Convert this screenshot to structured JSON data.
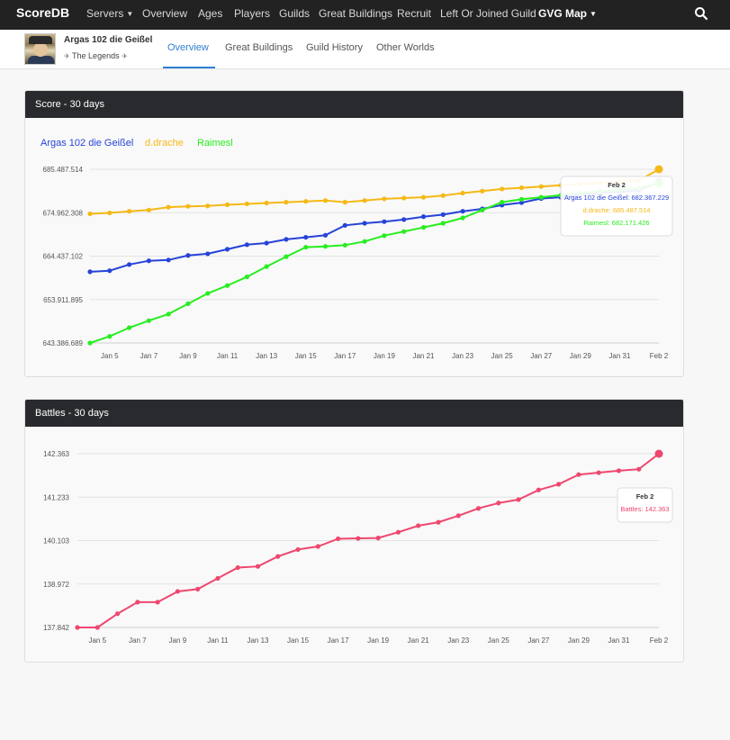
{
  "nav": {
    "brand": "ScoreDB",
    "items": [
      "Servers",
      "Overview",
      "Ages",
      "Players",
      "Guilds",
      "Great Buildings",
      "Recruit",
      "Left Or Joined Guild",
      "GVG Map"
    ]
  },
  "profile": {
    "name": "Argas 102 die Geißel",
    "guild": "The Legends",
    "guild_icon": "wing-icon",
    "tabs": [
      "Overview",
      "Great Buildings",
      "Guild History",
      "Other Worlds"
    ],
    "active_tab": "Overview"
  },
  "colors": {
    "argas": "#2643d8",
    "drache": "#f5b816",
    "raimesl": "#27ee1e",
    "battles": "#ef476f",
    "header": "#292a2e",
    "accent": "#2f7fd3"
  },
  "score_panel": {
    "title": "Score - 30 days"
  },
  "battles_panel": {
    "title": "Battles - 30 days"
  },
  "chart_data": [
    {
      "type": "line",
      "title": "Score - 30 days",
      "legend_placement": "top-left",
      "grid": true,
      "x_labels": [
        "Jan 5",
        "Jan 7",
        "Jan 9",
        "Jan 11",
        "Jan 13",
        "Jan 15",
        "Jan 17",
        "Jan 19",
        "Jan 21",
        "Jan 23",
        "Jan 25",
        "Jan 27",
        "Jan 29",
        "Jan 31",
        "Feb 2"
      ],
      "y_ticks": [
        "685.487.514",
        "674.962.308",
        "664.437.102",
        "653.911.895",
        "643.386.689"
      ],
      "ylim": [
        643386689,
        685487514
      ],
      "x": [
        "Jan 4",
        "Jan 5",
        "Jan 6",
        "Jan 7",
        "Jan 8",
        "Jan 9",
        "Jan 10",
        "Jan 11",
        "Jan 12",
        "Jan 13",
        "Jan 14",
        "Jan 15",
        "Jan 16",
        "Jan 17",
        "Jan 18",
        "Jan 19",
        "Jan 20",
        "Jan 21",
        "Jan 22",
        "Jan 23",
        "Jan 24",
        "Jan 25",
        "Jan 26",
        "Jan 27",
        "Jan 28",
        "Jan 29",
        "Jan 30",
        "Jan 31",
        "Feb 1",
        "Feb 2"
      ],
      "series": [
        {
          "name": "Argas 102 die Geißel",
          "color": "#2643d8",
          "values": [
            660650000,
            660900000,
            662400000,
            663300000,
            663500000,
            664600000,
            665000000,
            666100000,
            667200000,
            667600000,
            668500000,
            669000000,
            669500000,
            671900000,
            672400000,
            672800000,
            673300000,
            674000000,
            674500000,
            675300000,
            675900000,
            676800000,
            677400000,
            678400000,
            678700000,
            679300000,
            679700000,
            680000000,
            680400000,
            682367229
          ]
        },
        {
          "name": "d.drache",
          "color": "#f5b816",
          "values": [
            674700000,
            674900000,
            675300000,
            675600000,
            676300000,
            676500000,
            676600000,
            676900000,
            677100000,
            677300000,
            677500000,
            677700000,
            677900000,
            677500000,
            677900000,
            678300000,
            678500000,
            678700000,
            679100000,
            679700000,
            680200000,
            680700000,
            681000000,
            681300000,
            681600000,
            681900000,
            682200000,
            682500000,
            682800000,
            685487514
          ]
        },
        {
          "name": "Raimesl",
          "color": "#27ee1e",
          "values": [
            643386689,
            645000000,
            647100000,
            648800000,
            650400000,
            652900000,
            655400000,
            657300000,
            659400000,
            661900000,
            664300000,
            666600000,
            666800000,
            667100000,
            668000000,
            669400000,
            670400000,
            671400000,
            672400000,
            673700000,
            675600000,
            677500000,
            678200000,
            678700000,
            679200000,
            679700000,
            680100000,
            680500000,
            680900000,
            682171426
          ]
        }
      ],
      "tooltip": {
        "title": "Feb 2",
        "lines": [
          "Argas 102 die Geißel: 682.367.229",
          "d.drache: 685.487.514",
          "Raimesl: 682.171.426"
        ]
      }
    },
    {
      "type": "line",
      "title": "Battles - 30 days",
      "grid": true,
      "x_labels": [
        "Jan 5",
        "Jan 7",
        "Jan 9",
        "Jan 11",
        "Jan 13",
        "Jan 15",
        "Jan 17",
        "Jan 19",
        "Jan 21",
        "Jan 23",
        "Jan 25",
        "Jan 27",
        "Jan 29",
        "Jan 31",
        "Feb 2"
      ],
      "y_ticks": [
        "142.363",
        "141.233",
        "140.103",
        "138.972",
        "137.842"
      ],
      "ylim": [
        137842,
        142363
      ],
      "x": [
        "Jan 4",
        "Jan 5",
        "Jan 6",
        "Jan 7",
        "Jan 8",
        "Jan 9",
        "Jan 10",
        "Jan 11",
        "Jan 12",
        "Jan 13",
        "Jan 14",
        "Jan 15",
        "Jan 16",
        "Jan 17",
        "Jan 18",
        "Jan 19",
        "Jan 20",
        "Jan 21",
        "Jan 22",
        "Jan 23",
        "Jan 24",
        "Jan 25",
        "Jan 26",
        "Jan 27",
        "Jan 28",
        "Jan 29",
        "Jan 30",
        "Jan 31",
        "Feb 1",
        "Feb 2"
      ],
      "series": [
        {
          "name": "Battles",
          "color": "#ef476f",
          "values": [
            137842,
            137842,
            138200,
            138500,
            138500,
            138780,
            138840,
            139120,
            139400,
            139430,
            139690,
            139870,
            139950,
            140150,
            140160,
            140170,
            140320,
            140490,
            140580,
            140750,
            140940,
            141080,
            141170,
            141420,
            141570,
            141820,
            141870,
            141920,
            141960,
            142363
          ]
        }
      ],
      "tooltip": {
        "title": "Feb 2",
        "lines": [
          "Battles: 142.363"
        ]
      }
    }
  ]
}
